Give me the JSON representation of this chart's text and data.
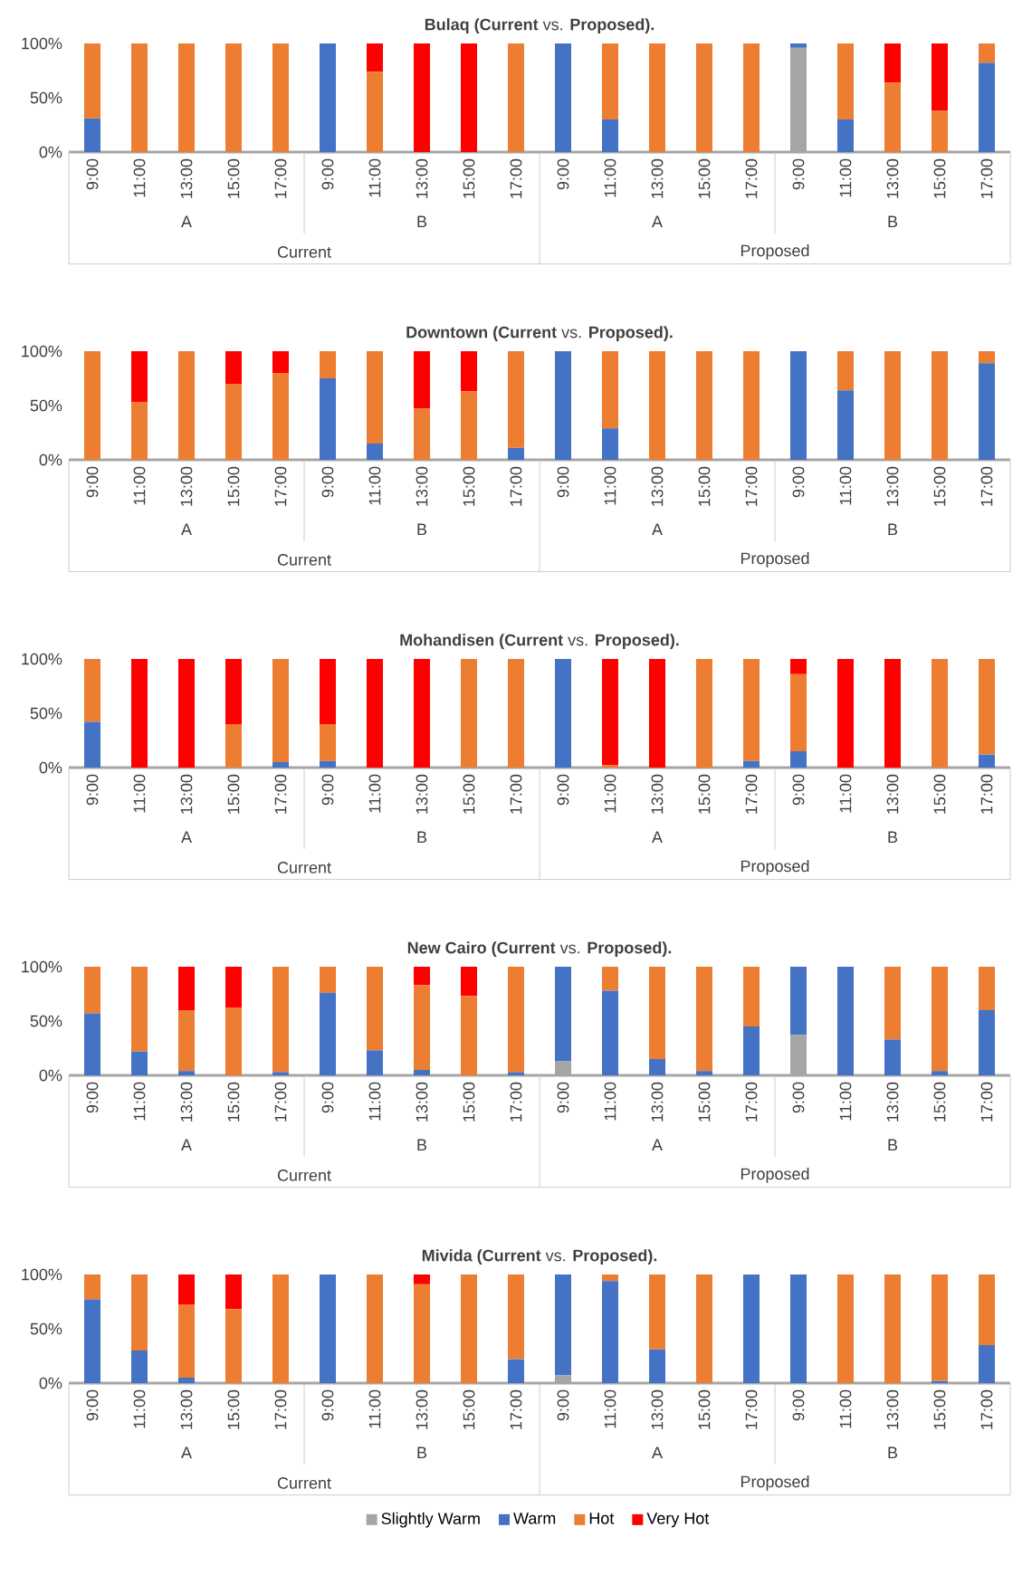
{
  "chart_data": [
    {
      "type": "bar",
      "stacked": true,
      "title": "**Bulaq (Current** vs. **Proposed).**",
      "categories": [
        "9:00",
        "11:00",
        "13:00",
        "15:00",
        "17:00",
        "9:00",
        "11:00",
        "13:00",
        "15:00",
        "17:00",
        "9:00",
        "11:00",
        "13:00",
        "15:00",
        "17:00",
        "9:00",
        "11:00",
        "13:00",
        "15:00",
        "17:00"
      ],
      "annotations": [
        "A",
        "B",
        "A",
        "B",
        "Current",
        "Proposed"
      ],
      "ylim": [
        0,
        100
      ],
      "yticks": [
        {
          "value": 0,
          "label": "0%"
        },
        {
          "value": 50,
          "label": "50%"
        },
        {
          "value": 100,
          "label": "100%"
        }
      ],
      "series": [
        {
          "color": "#a5a5a5",
          "values": [
            0,
            0,
            0,
            0,
            0,
            0,
            0,
            0,
            0,
            0,
            0,
            0,
            0,
            0,
            0,
            96,
            0,
            0,
            0,
            0
          ]
        },
        {
          "color": "#4472c4",
          "values": [
            31,
            0,
            0,
            0,
            0,
            100,
            0,
            0,
            0,
            0,
            100,
            30,
            0,
            0,
            0,
            4,
            30,
            0,
            0,
            82
          ]
        },
        {
          "color": "#ed7d31",
          "values": [
            69,
            100,
            100,
            100,
            100,
            0,
            74,
            0,
            0,
            100,
            0,
            70,
            100,
            100,
            100,
            0,
            70,
            64,
            38,
            18
          ]
        },
        {
          "color": "#ff0000",
          "values": [
            0,
            0,
            0,
            0,
            0,
            0,
            26,
            100,
            100,
            0,
            0,
            0,
            0,
            0,
            0,
            0,
            0,
            36,
            62,
            0
          ]
        }
      ]
    },
    {
      "type": "bar",
      "stacked": true,
      "title": "**Downtown (Current** vs. **Proposed).**",
      "categories": [
        "9:00",
        "11:00",
        "13:00",
        "15:00",
        "17:00",
        "9:00",
        "11:00",
        "13:00",
        "15:00",
        "17:00",
        "9:00",
        "11:00",
        "13:00",
        "15:00",
        "17:00",
        "9:00",
        "11:00",
        "13:00",
        "15:00",
        "17:00"
      ],
      "annotations": [
        "A",
        "B",
        "A",
        "B",
        "Current",
        "Proposed"
      ],
      "ylim": [
        0,
        100
      ],
      "yticks": [
        {
          "value": 0,
          "label": "0%"
        },
        {
          "value": 50,
          "label": "50%"
        },
        {
          "value": 100,
          "label": "100%"
        }
      ],
      "series": [
        {
          "color": "#a5a5a5",
          "values": [
            0,
            0,
            0,
            0,
            0,
            0,
            0,
            0,
            0,
            0,
            0,
            0,
            0,
            0,
            0,
            0,
            0,
            0,
            0,
            0
          ]
        },
        {
          "color": "#4472c4",
          "values": [
            0,
            0,
            0,
            0,
            0,
            75,
            15,
            0,
            0,
            11,
            100,
            29,
            0,
            0,
            0,
            100,
            64,
            0,
            0,
            89
          ]
        },
        {
          "color": "#ed7d31",
          "values": [
            100,
            53,
            100,
            70,
            80,
            25,
            85,
            47,
            63,
            89,
            0,
            71,
            100,
            100,
            100,
            0,
            36,
            100,
            100,
            11
          ]
        },
        {
          "color": "#ff0000",
          "values": [
            0,
            47,
            0,
            30,
            20,
            0,
            0,
            53,
            37,
            0,
            0,
            0,
            0,
            0,
            0,
            0,
            0,
            0,
            0,
            0
          ]
        }
      ]
    },
    {
      "type": "bar",
      "stacked": true,
      "title": "**Mohandisen (Current** vs. **Proposed).**",
      "categories": [
        "9:00",
        "11:00",
        "13:00",
        "15:00",
        "17:00",
        "9:00",
        "11:00",
        "13:00",
        "15:00",
        "17:00",
        "9:00",
        "11:00",
        "13:00",
        "15:00",
        "17:00",
        "9:00",
        "11:00",
        "13:00",
        "15:00",
        "17:00"
      ],
      "annotations": [
        "A",
        "B",
        "A",
        "B",
        "Current",
        "Proposed"
      ],
      "ylim": [
        0,
        100
      ],
      "yticks": [
        {
          "value": 0,
          "label": "0%"
        },
        {
          "value": 50,
          "label": "50%"
        },
        {
          "value": 100,
          "label": "100%"
        }
      ],
      "series": [
        {
          "color": "#a5a5a5",
          "values": [
            0,
            0,
            0,
            0,
            0,
            0,
            0,
            0,
            0,
            0,
            0,
            0,
            0,
            0,
            0,
            0,
            0,
            0,
            0,
            0
          ]
        },
        {
          "color": "#4472c4",
          "values": [
            42,
            0,
            0,
            0,
            5,
            6,
            0,
            0,
            0,
            0,
            100,
            0,
            0,
            0,
            6,
            15,
            0,
            0,
            0,
            12
          ]
        },
        {
          "color": "#ed7d31",
          "values": [
            58,
            0,
            0,
            40,
            95,
            34,
            0,
            0,
            100,
            100,
            0,
            2,
            0,
            100,
            94,
            71,
            0,
            0,
            100,
            88
          ]
        },
        {
          "color": "#ff0000",
          "values": [
            0,
            100,
            100,
            60,
            0,
            60,
            100,
            100,
            0,
            0,
            0,
            98,
            100,
            0,
            0,
            14,
            100,
            100,
            0,
            0
          ]
        }
      ]
    },
    {
      "type": "bar",
      "stacked": true,
      "title": "**New Cairo (Current** vs. **Proposed).**",
      "categories": [
        "9:00",
        "11:00",
        "13:00",
        "15:00",
        "17:00",
        "9:00",
        "11:00",
        "13:00",
        "15:00",
        "17:00",
        "9:00",
        "11:00",
        "13:00",
        "15:00",
        "17:00",
        "9:00",
        "11:00",
        "13:00",
        "15:00",
        "17:00"
      ],
      "annotations": [
        "A",
        "B",
        "A",
        "B",
        "Current",
        "Proposed"
      ],
      "ylim": [
        0,
        100
      ],
      "yticks": [
        {
          "value": 0,
          "label": "0%"
        },
        {
          "value": 50,
          "label": "50%"
        },
        {
          "value": 100,
          "label": "100%"
        }
      ],
      "series": [
        {
          "color": "#a5a5a5",
          "values": [
            0,
            0,
            0,
            0,
            0,
            0,
            0,
            0,
            0,
            0,
            13,
            0,
            0,
            0,
            0,
            37,
            0,
            0,
            0,
            0
          ]
        },
        {
          "color": "#4472c4",
          "values": [
            57,
            22,
            4,
            0,
            3,
            76,
            23,
            5,
            0,
            3,
            87,
            78,
            15,
            4,
            45,
            63,
            100,
            33,
            4,
            60
          ]
        },
        {
          "color": "#ed7d31",
          "values": [
            43,
            78,
            56,
            62,
            97,
            24,
            77,
            78,
            73,
            97,
            0,
            22,
            85,
            96,
            55,
            0,
            0,
            67,
            96,
            40
          ]
        },
        {
          "color": "#ff0000",
          "values": [
            0,
            0,
            40,
            38,
            0,
            0,
            0,
            17,
            27,
            0,
            0,
            0,
            0,
            0,
            0,
            0,
            0,
            0,
            0,
            0
          ]
        }
      ]
    },
    {
      "type": "bar",
      "stacked": true,
      "title": "**Mivida (Current** vs. **Proposed).**",
      "legend": "bottom",
      "categories": [
        "9:00",
        "11:00",
        "13:00",
        "15:00",
        "17:00",
        "9:00",
        "11:00",
        "13:00",
        "15:00",
        "17:00",
        "9:00",
        "11:00",
        "13:00",
        "15:00",
        "17:00",
        "9:00",
        "11:00",
        "13:00",
        "15:00",
        "17:00"
      ],
      "annotations": [
        "A",
        "B",
        "A",
        "B",
        "Current",
        "Proposed"
      ],
      "ylim": [
        0,
        100
      ],
      "yticks": [
        {
          "value": 0,
          "label": "0%"
        },
        {
          "value": 50,
          "label": "50%"
        },
        {
          "value": 100,
          "label": "100%"
        }
      ],
      "series": [
        {
          "name": "Slightly Warm",
          "color": "#a5a5a5",
          "values": [
            0,
            0,
            0,
            0,
            0,
            0,
            0,
            0,
            0,
            0,
            7,
            0,
            0,
            0,
            0,
            0,
            0,
            0,
            0,
            0
          ]
        },
        {
          "name": "Warm",
          "color": "#4472c4",
          "values": [
            77,
            30,
            5,
            0,
            0,
            100,
            0,
            0,
            0,
            22,
            93,
            94,
            31,
            0,
            100,
            100,
            0,
            0,
            2,
            35
          ]
        },
        {
          "name": "Hot",
          "color": "#ed7d31",
          "values": [
            23,
            70,
            67,
            68,
            100,
            0,
            100,
            91,
            100,
            78,
            0,
            6,
            69,
            100,
            0,
            0,
            100,
            100,
            98,
            65
          ]
        },
        {
          "name": "Very Hot",
          "color": "#ff0000",
          "values": [
            0,
            0,
            28,
            32,
            0,
            0,
            0,
            9,
            0,
            0,
            0,
            0,
            0,
            0,
            0,
            0,
            0,
            0,
            0,
            0
          ]
        }
      ]
    }
  ]
}
